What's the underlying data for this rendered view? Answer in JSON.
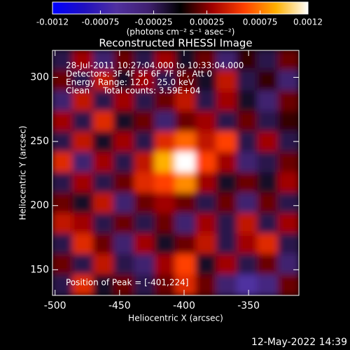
{
  "chart_data": {
    "type": "heatmap",
    "title": "Reconstructed RHESSI Image",
    "x_label": "Heliocentric X (arcsec)",
    "y_label": "Heliocentric Y (arcsec)",
    "xlim": [
      -502,
      -311
    ],
    "ylim": [
      130,
      321
    ],
    "xticks": [
      -500,
      -450,
      -400,
      -350
    ],
    "yticks": [
      150,
      200,
      250,
      300
    ],
    "colorbar_label": "(photons cm⁻² s⁻¹ asec⁻²)",
    "colorlim": [
      -0.0012,
      0.0012
    ],
    "colorticks": [
      -0.0012,
      -0.00075,
      -0.00025,
      0.00025,
      0.00075,
      0.0012
    ],
    "colormap": [
      "#0000ff",
      "#2010c0",
      "#5030a0",
      "#402070",
      "#000000",
      "#a00000",
      "#ff4000",
      "#ffb000",
      "#ffffff"
    ],
    "annotations": [
      "28-Jul-2011 10:27:04.000 to 10:33:04.000",
      "Detectors: 3F 4F 5F 6F 7F 8F, Att 0",
      "Energy Range: 12.0 - 25.0 keV",
      "Clean     Total counts: 3.59E+04"
    ],
    "peak_label": "Position of Peak = [-401,224]",
    "footer": "12-May-2022 14:39",
    "z": [
      [
        -0.0002,
        0.0003,
        -0.0003,
        0.0002,
        -0.0002,
        0.0003,
        -0.0001,
        0.0002,
        -0.0003,
        0.0001,
        -0.0002,
        0.0002
      ],
      [
        0.0002,
        -0.0002,
        0.0004,
        -0.0001,
        0.0003,
        -0.0002,
        0.0002,
        -0.0001,
        0.0004,
        -0.0002,
        0.0001,
        -0.0003
      ],
      [
        -0.0003,
        0.0004,
        -0.0002,
        0.0003,
        -0.0002,
        0.0002,
        0.0004,
        -0.0002,
        0.0003,
        -0.0001,
        -0.0003,
        0.0002
      ],
      [
        0.0003,
        -0.0002,
        0.0005,
        -0.0001,
        0.0002,
        -0.0003,
        0.0002,
        0.0003,
        -0.0002,
        0.0002,
        -0.0002,
        0.0001
      ],
      [
        -0.0002,
        0.0004,
        -0.0001,
        0.0003,
        -0.0002,
        0.0005,
        0.0007,
        0.0004,
        0.0006,
        -0.0002,
        0.0003,
        -0.0002
      ],
      [
        0.0005,
        -0.0003,
        0.0003,
        -0.0002,
        0.0004,
        0.0009,
        0.0012,
        0.0006,
        0.0003,
        -0.0003,
        -0.0002,
        0.0002
      ],
      [
        -0.0002,
        0.0003,
        -0.0002,
        0.0002,
        0.0005,
        0.0006,
        0.0008,
        0.0003,
        -0.0001,
        0.0002,
        -0.0001,
        0.0003
      ],
      [
        0.0002,
        -0.0001,
        0.0004,
        -0.0003,
        0.0002,
        0.0003,
        0.0002,
        -0.0002,
        0.0002,
        -0.0003,
        0.0002,
        -0.0002
      ],
      [
        0.0004,
        0.0003,
        -0.0002,
        0.0002,
        -0.0002,
        0.0002,
        -0.0003,
        0.0003,
        -0.0002,
        0.0004,
        -0.0002,
        0.0003
      ],
      [
        -0.0002,
        0.0005,
        0.0002,
        -0.0003,
        0.0003,
        -0.0001,
        0.0002,
        0.0004,
        -0.0002,
        0.0003,
        0.0005,
        -0.0002
      ],
      [
        0.0002,
        -0.0002,
        0.0004,
        -0.0002,
        -0.0003,
        0.0003,
        0.0006,
        -0.0001,
        0.0003,
        -0.0002,
        0.0002,
        -0.0003
      ],
      [
        -0.0002,
        0.0005,
        -0.0001,
        0.0002,
        -0.0002,
        0.0002,
        0.0005,
        0.0002,
        -0.0003,
        -0.0006,
        -0.0004,
        0.0002
      ]
    ]
  }
}
